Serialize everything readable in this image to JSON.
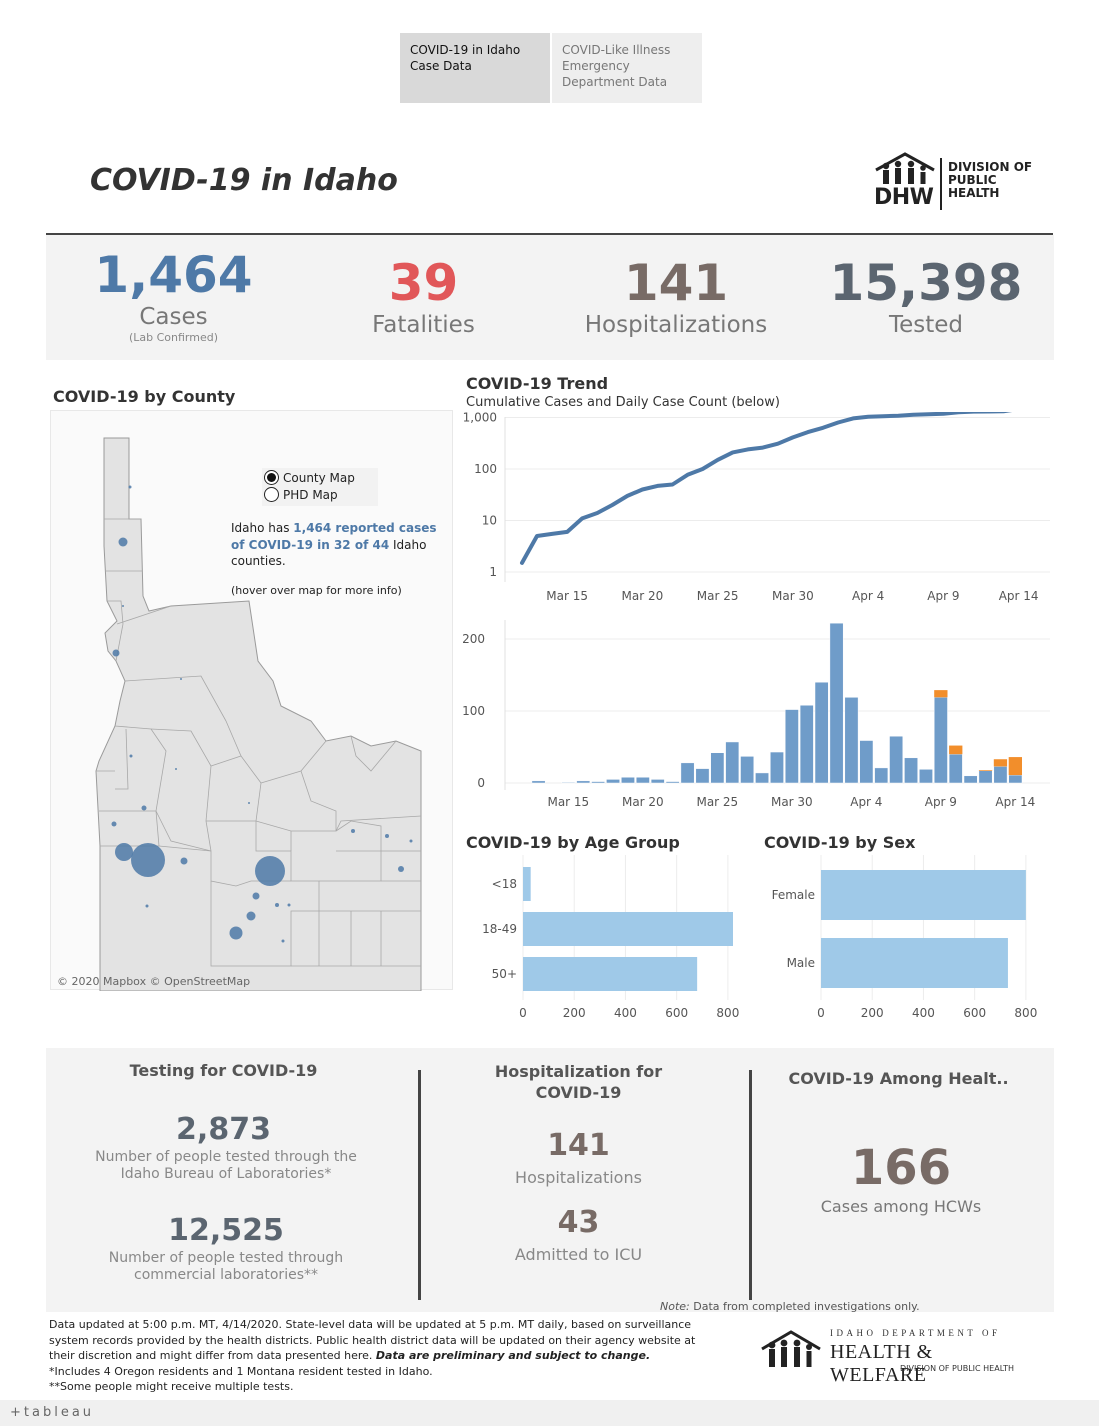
{
  "tabs": [
    {
      "label": "COVID-19 in Idaho Case Data"
    },
    {
      "label": "COVID-Like Illness Emergency Department Data"
    }
  ],
  "title": "COVID-19 in Idaho",
  "logo": {
    "abbr": "DHW",
    "line1": "DIVISION OF",
    "line2": "PUBLIC",
    "line3": "HEALTH"
  },
  "kpis": {
    "cases": {
      "value": "1,464",
      "label": "Cases",
      "sub": "(Lab Confirmed)"
    },
    "fatalities": {
      "value": "39",
      "label": "Fatalities"
    },
    "hospitalizations": {
      "value": "141",
      "label": "Hospitalizations"
    },
    "tested": {
      "value": "15,398",
      "label": "Tested"
    }
  },
  "colors": {
    "blue": "#4e79a7",
    "red": "#e15759",
    "brown": "#786b66",
    "slate": "#5b6570",
    "bar_light": "#9fc9e8",
    "orange": "#f28e2b"
  },
  "county": {
    "title": "COVID-19 by County",
    "radio": {
      "county": "County Map",
      "phd": "PHD Map",
      "selected": "County Map"
    },
    "note_pre": "Idaho has ",
    "note_hl": "1,464 reported cases of COVID-19 in 32 of 44",
    "note_post": " Idaho counties.",
    "hover": "(hover over map for more info)",
    "attribution": "© 2020 Mapbox © OpenStreetMap"
  },
  "trend": {
    "title": "COVID-19 Trend",
    "subtitle": "Cumulative Cases and Daily Case Count (below)"
  },
  "age": {
    "title": "COVID-19 by Age Group"
  },
  "sex": {
    "title": "COVID-19 by Sex"
  },
  "chart_data": [
    {
      "type": "line",
      "name": "cumulative",
      "yscale": "log",
      "yticks": [
        "1,000",
        "100",
        "10",
        "1"
      ],
      "xticks": [
        "Mar 15",
        "Mar 20",
        "Mar 25",
        "Mar 30",
        "Apr 4",
        "Apr 9",
        "Apr 14"
      ],
      "x": [
        "Mar 12",
        "Mar 13",
        "Mar 14",
        "Mar 15",
        "Mar 16",
        "Mar 17",
        "Mar 18",
        "Mar 19",
        "Mar 20",
        "Mar 21",
        "Mar 22",
        "Mar 23",
        "Mar 24",
        "Mar 25",
        "Mar 26",
        "Mar 27",
        "Mar 28",
        "Mar 29",
        "Mar 30",
        "Mar 31",
        "Apr 1",
        "Apr 2",
        "Apr 3",
        "Apr 4",
        "Apr 5",
        "Apr 6",
        "Apr 7",
        "Apr 8",
        "Apr 9",
        "Apr 10",
        "Apr 11",
        "Apr 12",
        "Apr 13",
        "Apr 14"
      ],
      "values": [
        1.5,
        5,
        5.5,
        6,
        11,
        14,
        20,
        30,
        40,
        47,
        50,
        77,
        100,
        150,
        210,
        240,
        260,
        310,
        410,
        520,
        630,
        800,
        960,
        1030,
        1060,
        1080,
        1130,
        1160,
        1180,
        1270,
        1300,
        1310,
        1320,
        1464
      ]
    },
    {
      "type": "bar",
      "name": "daily",
      "yticks": [
        "200",
        "100",
        "0"
      ],
      "xticks": [
        "Mar 15",
        "Mar 20",
        "Mar 25",
        "Mar 30",
        "Apr 4",
        "Apr 9",
        "Apr 14"
      ],
      "x": [
        "Mar 12",
        "Mar 13",
        "Mar 14",
        "Mar 15",
        "Mar 16",
        "Mar 17",
        "Mar 18",
        "Mar 19",
        "Mar 20",
        "Mar 21",
        "Mar 22",
        "Mar 23",
        "Mar 24",
        "Mar 25",
        "Mar 26",
        "Mar 27",
        "Mar 28",
        "Mar 29",
        "Mar 30",
        "Mar 31",
        "Apr 1",
        "Apr 2",
        "Apr 3",
        "Apr 4",
        "Apr 5",
        "Apr 6",
        "Apr 7",
        "Apr 8",
        "Apr 9",
        "Apr 10",
        "Apr 11",
        "Apr 12",
        "Apr 13",
        "Apr 14"
      ],
      "series": [
        {
          "values": [
            0,
            3,
            0,
            1,
            3,
            2,
            5,
            8,
            8,
            5,
            2,
            28,
            20,
            42,
            57,
            37,
            14,
            43,
            102,
            108,
            140,
            222,
            119,
            59,
            21,
            65,
            35,
            19,
            119,
            40,
            10,
            17,
            23,
            11
          ]
        },
        {
          "values": [
            0,
            0,
            0,
            0,
            0,
            0,
            0,
            0,
            0,
            0,
            0,
            0,
            0,
            0,
            0,
            0,
            0,
            0,
            0,
            0,
            0,
            0,
            0,
            0,
            0,
            0,
            0,
            0,
            10,
            12,
            0,
            1,
            10,
            25
          ]
        }
      ]
    },
    {
      "type": "bar",
      "name": "age",
      "categories": [
        "<18",
        "18-49",
        "50+"
      ],
      "values": [
        30,
        820,
        680
      ],
      "xticks": [
        "0",
        "200",
        "400",
        "600",
        "800"
      ],
      "xlim": [
        0,
        820
      ]
    },
    {
      "type": "bar",
      "name": "sex",
      "categories": [
        "Female",
        "Male"
      ],
      "values": [
        800,
        730
      ],
      "xticks": [
        "0",
        "200",
        "400",
        "600",
        "800"
      ],
      "xlim": [
        0,
        820
      ]
    }
  ],
  "testing": {
    "title": "Testing for COVID-19",
    "lab_value": "2,873",
    "lab_label": "Number of people tested through the Idaho Bureau of Laboratories*",
    "comm_value": "12,525",
    "comm_label": "Number of people tested through commercial laboratories**"
  },
  "hosp": {
    "title": "Hospitalization for COVID-19",
    "h_value": "141",
    "h_label": "Hospitalizations",
    "icu_value": "43",
    "icu_label": "Admitted to ICU"
  },
  "hcw": {
    "title": "COVID-19 Among Healt..",
    "value": "166",
    "label": "Cases among HCWs"
  },
  "note": {
    "prefix": "Note:",
    "text": " Data from completed investigations only."
  },
  "footer": {
    "line1": "Data updated at 5:00 p.m. MT, 4/14/2020. State-level data will be updated at 5 p.m. MT daily, based on surveillance system records provided by the health districts. Public health district data will be updated on their agency website at their discretion and might differ from data presented here. ",
    "bold": "Data are preliminary and subject to change.",
    "line2": "*Includes 4 Oregon residents and 1 Montana resident tested in Idaho.",
    "line3": "**Some people might receive multiple tests."
  },
  "hw_logo": {
    "small": "IDAHO DEPARTMENT OF",
    "big": "HEALTH & WELFARE",
    "sub": "DIVISION OF PUBLIC HEALTH"
  },
  "brand": "+tableau"
}
